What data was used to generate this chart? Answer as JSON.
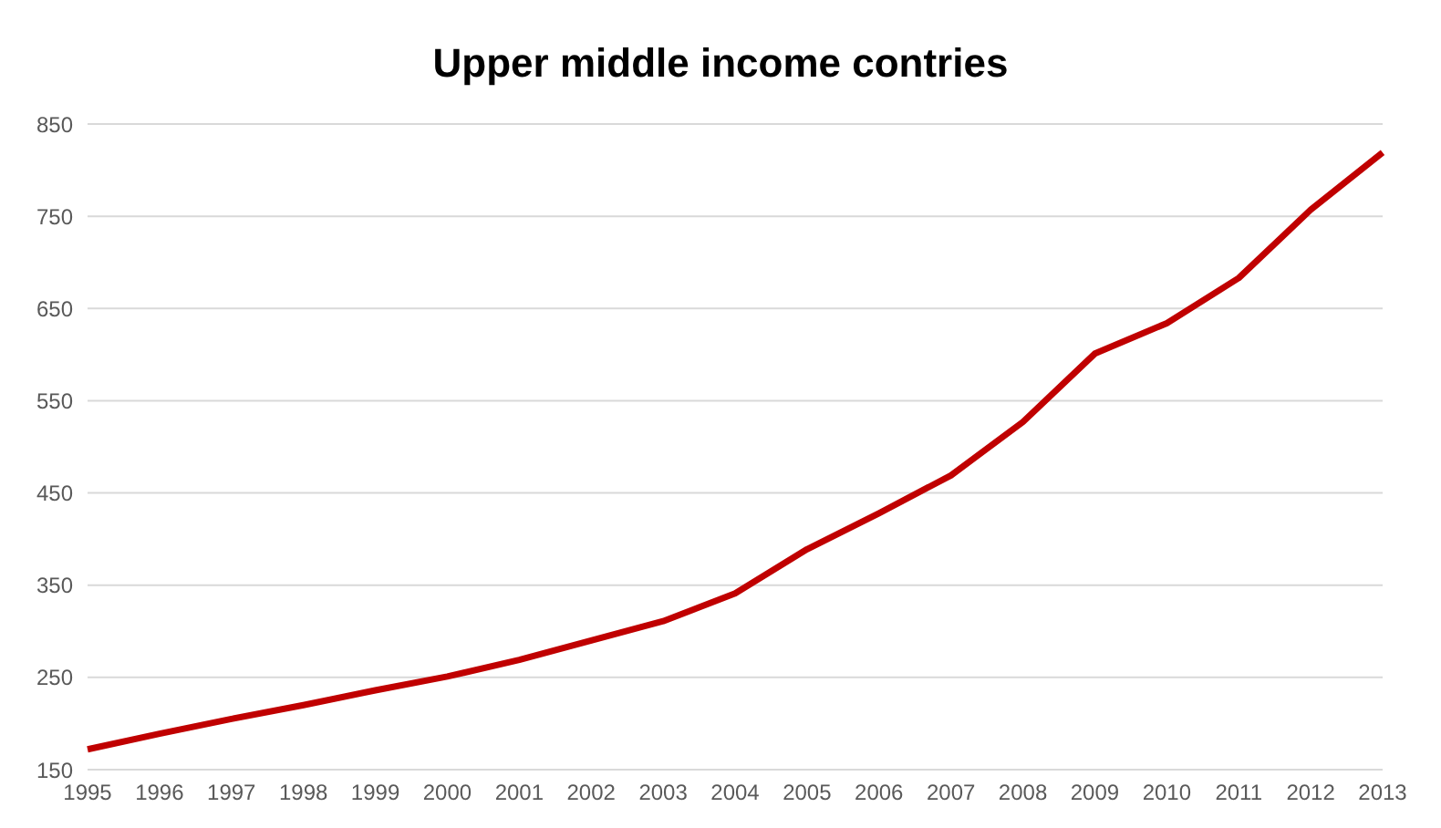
{
  "chart_data": {
    "type": "line",
    "title": "Upper middle income contries",
    "categories": [
      "1995",
      "1996",
      "1997",
      "1998",
      "1999",
      "2000",
      "2001",
      "2002",
      "2003",
      "2004",
      "2005",
      "2006",
      "2007",
      "2008",
      "2009",
      "2010",
      "2011",
      "2012",
      "2013"
    ],
    "series": [
      {
        "color": "#c00000",
        "values": [
          172,
          189,
          205,
          220,
          236,
          251,
          269,
          290,
          311,
          341,
          389,
          428,
          469,
          527,
          601,
          634,
          683,
          757,
          819
        ]
      }
    ],
    "ylim": [
      150,
      850
    ],
    "yticks": [
      150,
      250,
      350,
      450,
      550,
      650,
      750,
      850
    ],
    "grid": "y",
    "legend": false,
    "marker": "none",
    "line_style": "solid"
  }
}
